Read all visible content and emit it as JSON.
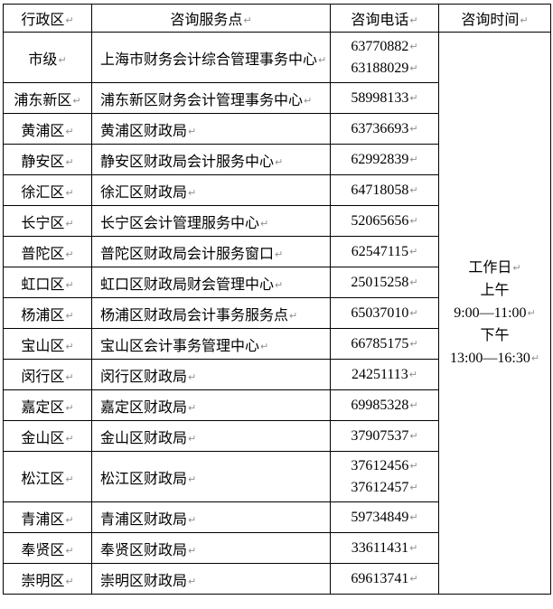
{
  "page": {
    "background": "#ffffff",
    "border_color": "#000000",
    "text_color": "#000000",
    "mark_color": "#8f8f8f",
    "mark_symbol": "↵"
  },
  "table": {
    "headers": [
      "行政区",
      "咨询服务点",
      "咨询电话",
      "咨询时间"
    ],
    "rows": [
      {
        "region": "市级",
        "service_point": "上海市财务会计综合管理事务中心",
        "phones": [
          "63770882",
          "63188029"
        ]
      },
      {
        "region": "浦东新区",
        "service_point": "浦东新区财务会计管理事务中心",
        "phones": [
          "58998133"
        ]
      },
      {
        "region": "黄浦区",
        "service_point": "黄浦区财政局",
        "phones": [
          "63736693"
        ]
      },
      {
        "region": "静安区",
        "service_point": "静安区财政局会计服务中心",
        "phones": [
          "62992839"
        ]
      },
      {
        "region": "徐汇区",
        "service_point": "徐汇区财政局",
        "phones": [
          "64718058"
        ]
      },
      {
        "region": "长宁区",
        "service_point": "长宁区会计管理服务中心",
        "phones": [
          "52065656"
        ]
      },
      {
        "region": "普陀区",
        "service_point": "普陀区财政局会计服务窗口",
        "phones": [
          "62547115"
        ]
      },
      {
        "region": "虹口区",
        "service_point": "虹口区财政局财会管理中心",
        "phones": [
          "25015258"
        ]
      },
      {
        "region": "杨浦区",
        "service_point": "杨浦区财政局会计事务服务点",
        "phones": [
          "65037010"
        ]
      },
      {
        "region": "宝山区",
        "service_point": "宝山区会计事务管理中心",
        "phones": [
          "66785175"
        ]
      },
      {
        "region": "闵行区",
        "service_point": "闵行区财政局",
        "phones": [
          "24251113"
        ]
      },
      {
        "region": "嘉定区",
        "service_point": "嘉定区财政局",
        "phones": [
          "69985328"
        ]
      },
      {
        "region": "金山区",
        "service_point": "金山区财政局",
        "phones": [
          "37907537"
        ]
      },
      {
        "region": "松江区",
        "service_point": "松江区财政局",
        "phones": [
          "37612456",
          "37612457"
        ]
      },
      {
        "region": "青浦区",
        "service_point": "青浦区财政局",
        "phones": [
          "59734849"
        ]
      },
      {
        "region": "奉贤区",
        "service_point": "奉贤区财政局",
        "phones": [
          "33611431"
        ]
      },
      {
        "region": "崇明区",
        "service_point": "崇明区财政局",
        "phones": [
          "69613741"
        ]
      }
    ],
    "consult_time": [
      {
        "text": "工作日",
        "mark": true
      },
      {
        "text": "上午",
        "mark": false
      },
      {
        "text": "9:00—11:00",
        "mark": true
      },
      {
        "text": "下午",
        "mark": false
      },
      {
        "text": "13:00—16:30",
        "mark": true
      }
    ]
  }
}
